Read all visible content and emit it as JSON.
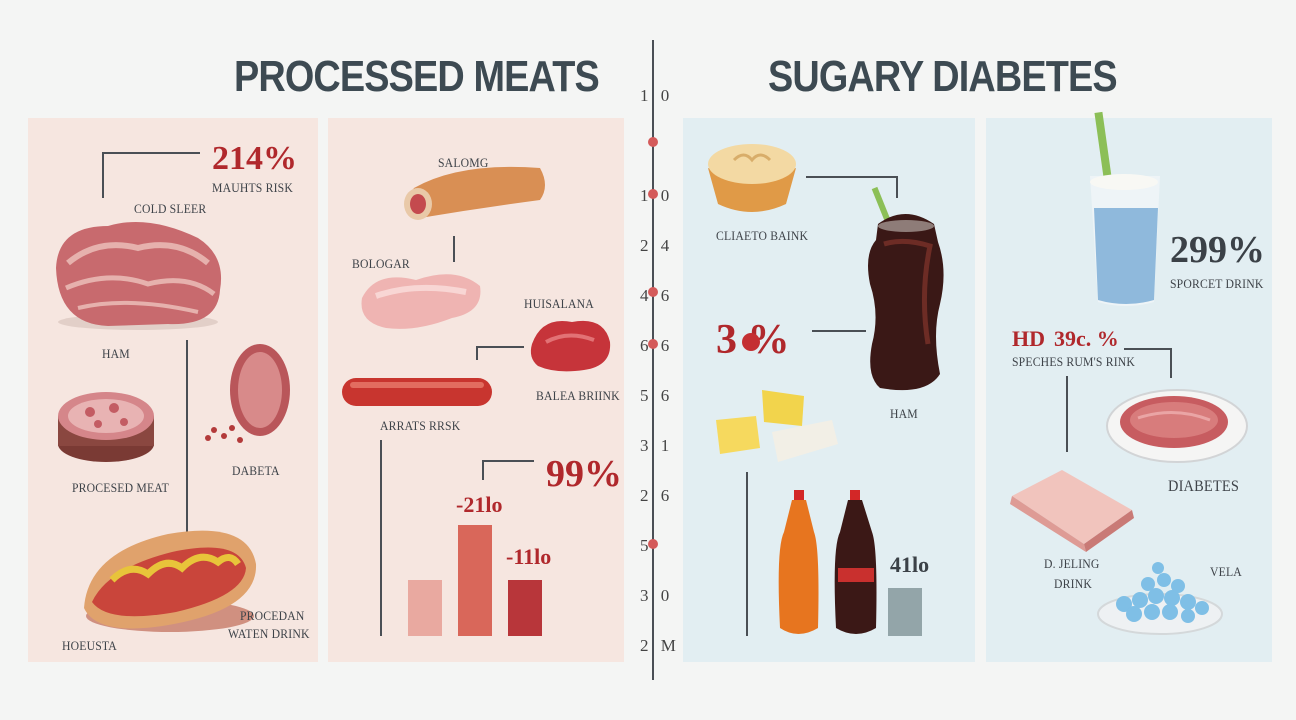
{
  "left": {
    "title": "PROCESSED MEATS",
    "big_stat": "214%",
    "big_stat_label": "MAUHTS RISK",
    "labels": {
      "cold_sleer": "COLD SLEER",
      "ham": "HAM",
      "procesed_meat": "PROCESED MEAT",
      "dabeta": "DABETA",
      "hoeusta": "HOEUSTA",
      "procedan": "PROCEDAN",
      "waten_drink": "WATEN DRINK",
      "salomg": "SALOMG",
      "bologar": "BOLOGAR",
      "huisalana": "HUISALANA",
      "balea_brink": "BALEA BRIINK",
      "arrats_rrsk": "ARRATS RRSK"
    },
    "bar_stat": "99%",
    "bar_label_1": "-21lo",
    "bar_label_2": "-11lo",
    "bars": [
      0.38,
      0.75,
      0.38
    ],
    "colors": {
      "bar1": "#e9a9a0",
      "bar2": "#d9675a",
      "bar3": "#b8363a"
    }
  },
  "center_axis": {
    "ticks": [
      "1 0",
      "",
      "1 0",
      "2 4",
      "4 6",
      "6 6",
      "5 6",
      "3 1",
      "2 6",
      "5",
      "3 0",
      "2 M"
    ]
  },
  "right": {
    "title": "SUGARY DIABETES",
    "labels": {
      "cliaeto_baink": "CLIAETO BAINK",
      "ham": "HAM",
      "sporcet_drink": "SPORCET DRINK",
      "hd": "HD",
      "speches": "SPECHES RUM'S RINK",
      "diabetes": "DIABETES",
      "d_jeling": "D. JELING",
      "drink": "DRINK",
      "vela": "VELA"
    },
    "stat_1": "3 %",
    "stat_2": "299%",
    "stat_3": "39c. %",
    "bar_label": "41lo",
    "colors": {
      "bar": "#93a5a9"
    }
  }
}
